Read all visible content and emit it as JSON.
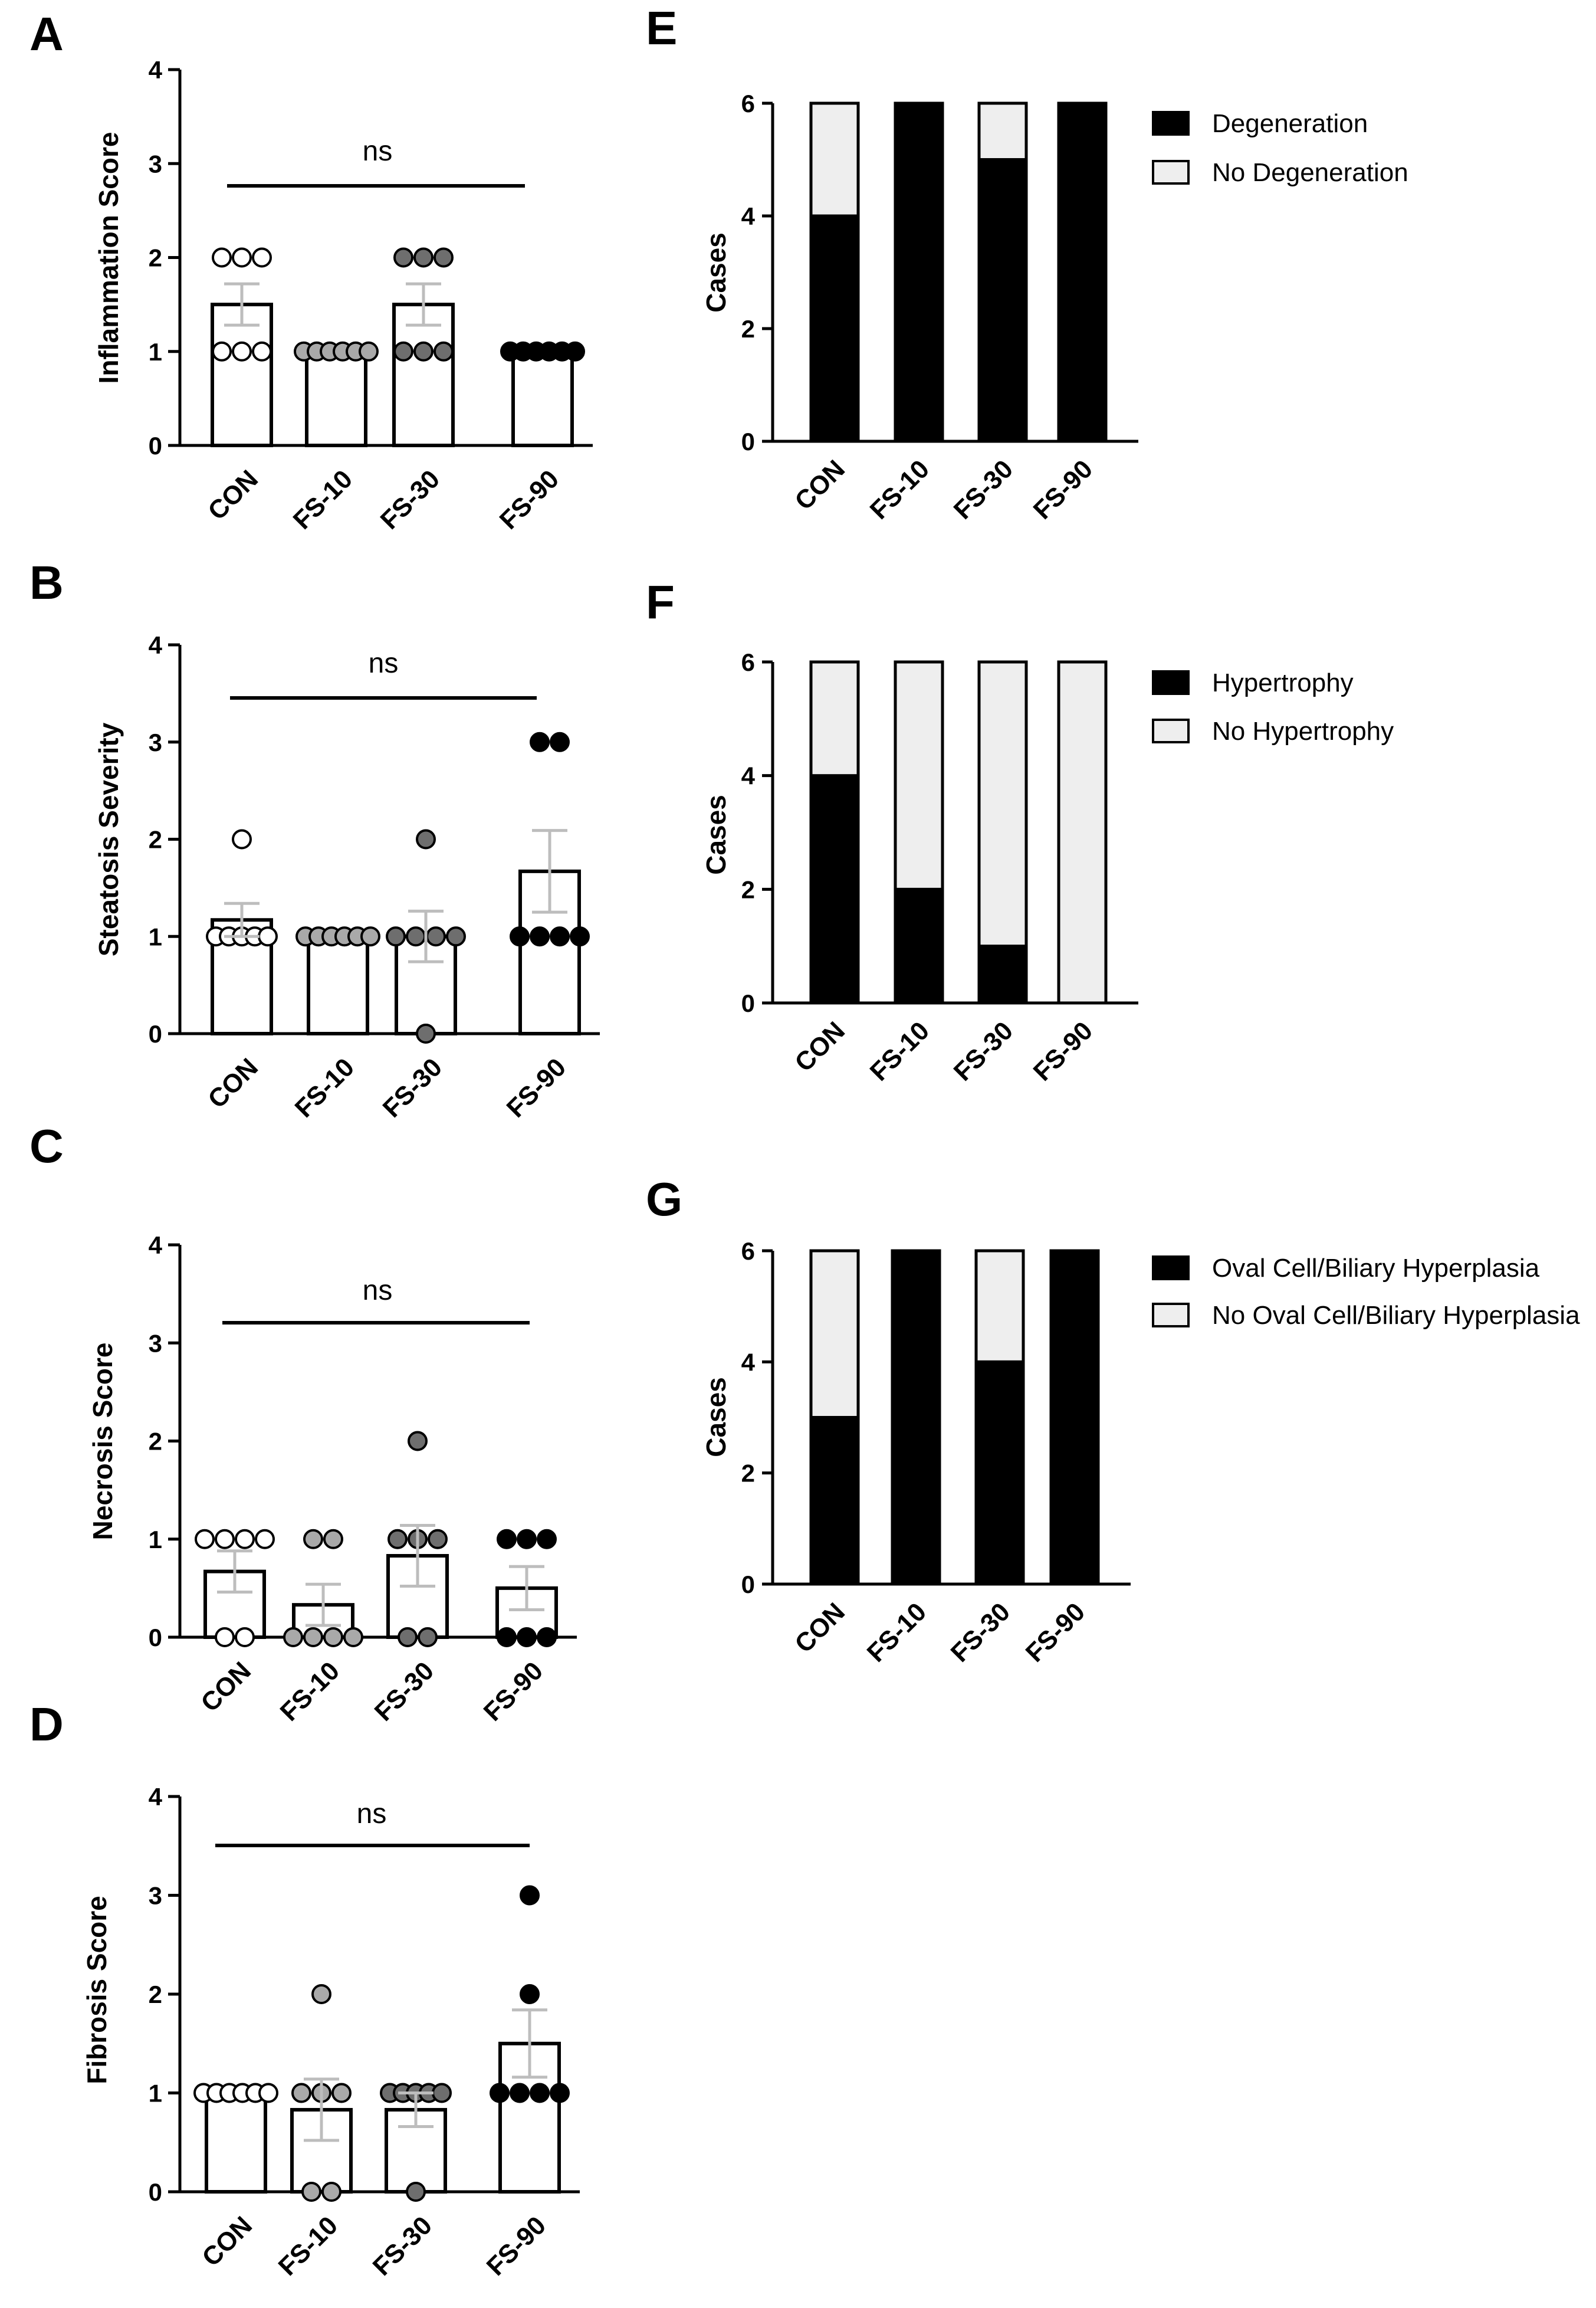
{
  "colors": {
    "axis": "#000000",
    "bar_fill": "#ffffff",
    "dot_CON": "#ffffff",
    "dot_FS10": "#a9a9a9",
    "dot_FS30": "#6e6e6e",
    "dot_FS90": "#000000",
    "stack_yes": "#000000",
    "stack_no": "#eeeeee",
    "error_bar": "#bdbdbd"
  },
  "chart_data": [
    {
      "id": "A",
      "panel_label": "A",
      "type": "bar",
      "ylabel": "Inflammation Score",
      "ylim": [
        0,
        4
      ],
      "yticks": [
        "0",
        "1",
        "2",
        "3",
        "4"
      ],
      "significance": "ns",
      "categories": [
        "CON",
        "FS-10",
        "FS-30",
        "FS-90"
      ],
      "values": [
        1.5,
        1.0,
        1.5,
        1.0
      ],
      "sem": [
        0.22,
        0.0,
        0.22,
        0.0
      ],
      "points": [
        [
          1,
          1,
          1,
          2,
          2,
          2
        ],
        [
          1,
          1,
          1,
          1,
          1,
          1
        ],
        [
          1,
          1,
          1,
          2,
          2,
          2
        ],
        [
          1,
          1,
          1,
          1,
          1,
          1
        ]
      ]
    },
    {
      "id": "B",
      "panel_label": "B",
      "type": "bar",
      "ylabel": "Steatosis Severity",
      "ylim": [
        0,
        4
      ],
      "yticks": [
        "0",
        "1",
        "2",
        "3",
        "4"
      ],
      "significance": "ns",
      "categories": [
        "CON",
        "FS-10",
        "FS-30",
        "FS-90"
      ],
      "values": [
        1.17,
        1.0,
        1.0,
        1.67
      ],
      "sem": [
        0.17,
        0.0,
        0.26,
        0.42
      ],
      "points": [
        [
          1,
          1,
          1,
          1,
          1,
          2
        ],
        [
          1,
          1,
          1,
          1,
          1,
          1
        ],
        [
          0,
          1,
          1,
          1,
          1,
          2
        ],
        [
          1,
          1,
          1,
          1,
          3,
          3
        ]
      ]
    },
    {
      "id": "C",
      "panel_label": "C",
      "type": "bar",
      "ylabel": "Necrosis Score",
      "ylim": [
        0,
        4
      ],
      "yticks": [
        "0",
        "1",
        "2",
        "3",
        "4"
      ],
      "significance": "ns",
      "categories": [
        "CON",
        "FS-10",
        "FS-30",
        "FS-90"
      ],
      "values": [
        0.67,
        0.33,
        0.83,
        0.5
      ],
      "sem": [
        0.21,
        0.21,
        0.31,
        0.22
      ],
      "points": [
        [
          0,
          0,
          1,
          1,
          1,
          1
        ],
        [
          0,
          0,
          0,
          0,
          1,
          1
        ],
        [
          0,
          0,
          1,
          1,
          1,
          2
        ],
        [
          0,
          0,
          0,
          1,
          1,
          1
        ]
      ]
    },
    {
      "id": "D",
      "panel_label": "D",
      "type": "bar",
      "ylabel": "Fibrosis Score",
      "ylim": [
        0,
        4
      ],
      "yticks": [
        "0",
        "1",
        "2",
        "3",
        "4"
      ],
      "significance": "ns",
      "categories": [
        "CON",
        "FS-10",
        "FS-30",
        "FS-90"
      ],
      "values": [
        1.0,
        0.83,
        0.83,
        1.5
      ],
      "sem": [
        0.0,
        0.31,
        0.17,
        0.34
      ],
      "points": [
        [
          1,
          1,
          1,
          1,
          1,
          1
        ],
        [
          0,
          0,
          1,
          1,
          1,
          2
        ],
        [
          0,
          1,
          1,
          1,
          1,
          1
        ],
        [
          1,
          1,
          1,
          1,
          2,
          3
        ]
      ]
    },
    {
      "id": "E",
      "panel_label": "E",
      "type": "stacked-bar",
      "ylabel": "Cases",
      "ylim": [
        0,
        6
      ],
      "yticks": [
        "0",
        "2",
        "4",
        "6"
      ],
      "categories": [
        "CON",
        "FS-10",
        "FS-30",
        "FS-90"
      ],
      "series": [
        {
          "name": "Degeneration",
          "values": [
            4,
            6,
            5,
            6
          ]
        },
        {
          "name": "No Degeneration",
          "values": [
            2,
            0,
            1,
            0
          ]
        }
      ]
    },
    {
      "id": "F",
      "panel_label": "F",
      "type": "stacked-bar",
      "ylabel": "Cases",
      "ylim": [
        0,
        6
      ],
      "yticks": [
        "0",
        "2",
        "4",
        "6"
      ],
      "categories": [
        "CON",
        "FS-10",
        "FS-30",
        "FS-90"
      ],
      "series": [
        {
          "name": "Hypertrophy",
          "values": [
            4,
            2,
            1,
            0
          ]
        },
        {
          "name": "No Hypertrophy",
          "values": [
            2,
            4,
            5,
            6
          ]
        }
      ]
    },
    {
      "id": "G",
      "panel_label": "G",
      "type": "stacked-bar",
      "ylabel": "Cases",
      "ylim": [
        0,
        6
      ],
      "yticks": [
        "0",
        "2",
        "4",
        "6"
      ],
      "categories": [
        "CON",
        "FS-10",
        "FS-30",
        "FS-90"
      ],
      "series": [
        {
          "name": "Oval Cell/Biliary Hyperplasia",
          "values": [
            3,
            6,
            4,
            6
          ]
        },
        {
          "name": "No Oval Cell/Biliary Hyperplasia",
          "values": [
            3,
            0,
            2,
            0
          ]
        }
      ]
    }
  ]
}
